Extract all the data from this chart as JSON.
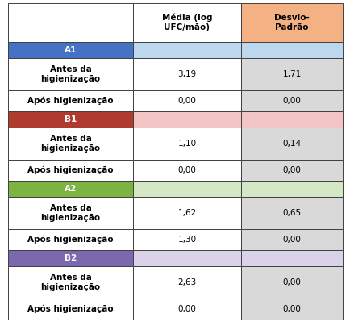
{
  "col_headers": [
    "Média (log\nUFC/mão)",
    "Desvio-\nPadrão"
  ],
  "sections": [
    {
      "label": "A1",
      "label_bg": "#4472C4",
      "label_text_color": "#FFFFFF",
      "section_bg_col1": "#BDD7EE",
      "section_bg_col2": "#BDD7EE",
      "rows": [
        {
          "label": "Antes da\nhigienização",
          "val1": "3,19",
          "val2": "1,71"
        },
        {
          "label": "Após higienização",
          "val1": "0,00",
          "val2": "0,00"
        }
      ],
      "val2_bg": "#D9D9D9"
    },
    {
      "label": "B1",
      "label_bg": "#B03A2E",
      "label_text_color": "#FFFFFF",
      "section_bg_col1": "#F2C4C4",
      "section_bg_col2": "#F2C4C4",
      "rows": [
        {
          "label": "Antes da\nhigienização",
          "val1": "1,10",
          "val2": "0,14"
        },
        {
          "label": "Após higienização",
          "val1": "0,00",
          "val2": "0,00"
        }
      ],
      "val2_bg": "#D9D9D9"
    },
    {
      "label": "A2",
      "label_bg": "#7CB342",
      "label_text_color": "#FFFFFF",
      "section_bg_col1": "#D5E8C5",
      "section_bg_col2": "#D5E8C5",
      "rows": [
        {
          "label": "Antes da\nhigienização",
          "val1": "1,62",
          "val2": "0,65"
        },
        {
          "label": "Após higienização",
          "val1": "1,30",
          "val2": "0,00"
        }
      ],
      "val2_bg": "#D9D9D9"
    },
    {
      "label": "B2",
      "label_bg": "#7B68AE",
      "label_text_color": "#FFFFFF",
      "section_bg_col1": "#D9D2E9",
      "section_bg_col2": "#D9D2E9",
      "rows": [
        {
          "label": "Antes da\nhigienização",
          "val1": "2,63",
          "val2": "0,00"
        },
        {
          "label": "Após higienização",
          "val1": "0,00",
          "val2": "0,00"
        }
      ],
      "val2_bg": "#D9D9D9"
    }
  ],
  "header_bg_col1": "#FFFFFF",
  "header_bg_col2": "#F4B183",
  "border_color": "#404040",
  "font_size": 7.5
}
